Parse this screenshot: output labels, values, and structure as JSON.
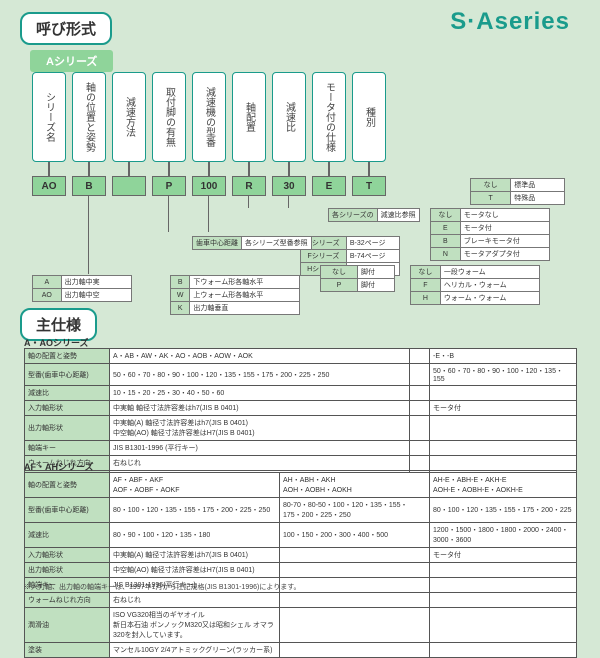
{
  "brand": "S·Aseries",
  "title_nomen": "呼び形式",
  "title_spec": "主仕様",
  "series_label": "Aシリーズ",
  "headers": [
    "シリーズ名",
    "軸の位置と姿勢",
    "減速方法",
    "取付脚の有無",
    "減速機の型番",
    "軸配置",
    "減速比",
    "モータ付の仕様",
    "種別"
  ],
  "values": [
    "AO",
    "B",
    "",
    "P",
    "100",
    "R",
    "30",
    "E",
    "T"
  ],
  "t_type": {
    "rows": [
      [
        "なし",
        "標準品"
      ],
      [
        "T",
        "特殊品"
      ]
    ]
  },
  "t_motor": {
    "rows": [
      [
        "なし",
        "モータなし"
      ],
      [
        "E",
        "モータ付"
      ],
      [
        "B",
        "ブレーキモータ付"
      ],
      [
        "N",
        "モータアダプタ付"
      ]
    ]
  },
  "t_mount": {
    "rows": [
      [
        "なし",
        "脚付"
      ],
      [
        "P",
        "脚付"
      ]
    ]
  },
  "t_worm": {
    "rows": [
      [
        "なし",
        "一段ウォーム"
      ],
      [
        "F",
        "ヘリカル・ウォーム"
      ],
      [
        "H",
        "ウォーム・ウォーム"
      ]
    ]
  },
  "t_pages": {
    "rows": [
      [
        "Bシリーズ",
        "B-32ページ"
      ],
      [
        "Fシリーズ",
        "B-74ページ"
      ],
      [
        "Hシリーズ",
        "B-110ページ"
      ]
    ]
  },
  "t_ratio": {
    "rows": [
      [
        "各シリーズの",
        "減速比参照"
      ]
    ]
  },
  "t_frame": {
    "rows": [
      [
        "歯車中心距離",
        "各シリーズ型番参照"
      ]
    ]
  },
  "t_bw": {
    "rows": [
      [
        "B",
        "下ウォーム形各軸水平"
      ],
      [
        "W",
        "上ウォーム形各軸水平"
      ],
      [
        "K",
        "出力軸垂直"
      ]
    ]
  },
  "t_out": {
    "rows": [
      [
        "A",
        "出力軸中実"
      ],
      [
        "AO",
        "出力軸中空"
      ]
    ]
  },
  "sub_a": "A・AOシリーズ",
  "sub_af": "AF・AHシリーズ",
  "spec_a": {
    "rows": [
      [
        "軸の配置と姿勢",
        "A・AB・AW・AK・AO・AOB・AOW・AOK",
        "",
        "-E・-B"
      ],
      [
        "型番(歯車中心距離)",
        "50・60・70・80・90・100・120・135・155・175・200・225・250",
        "",
        "50・60・70・80・90・100・120・135・155"
      ],
      [
        "減速比",
        "10・15・20・25・30・40・50・60",
        "",
        ""
      ],
      [
        "入力軸形状",
        "中実軸  軸径寸法許容差はh7(JIS B 0401)",
        "",
        "モータ付"
      ],
      [
        "出力軸形状",
        "中実軸(A)  軸径寸法許容差はh7(JIS B 0401)<br>中空軸(AO)  軸径寸法許容差はH7(JIS B 0401)",
        "",
        ""
      ],
      [
        "軸端キー",
        "JIS B1301-1996 (平行キー)",
        "",
        ""
      ],
      [
        "ウォームねじれ方向",
        "右ねじれ",
        "",
        ""
      ],
      [
        "潤滑油",
        "ISO VG320相当のギヤオイル<br>新日本石油 ボンノックM320又は昭和シェル オマラ320を封入しています。",
        "",
        ""
      ],
      [
        "塗装",
        "マンセル10GY 2/4アトミックグリーン(ラッカー系)",
        "",
        ""
      ]
    ]
  },
  "spec_af": {
    "rows": [
      [
        "軸の配置と姿勢",
        "AF・ABF・AKF<br>AOF・AOBF・AOKF",
        "AH・ABH・AKH<br>AOH・AOBH・AOKH",
        "AH-E・ABH-E・AKH-E<br>AOH-E・AOBH-E・AOKH-E"
      ],
      [
        "型番(歯車中心距離)",
        "80・100・120・135・155・175・200・225・250",
        "80-70・80-50・100・120・135・155・175・200・225・250",
        "80・100・120・135・155・175・200・225"
      ],
      [
        "減速比",
        "80・90・100・120・135・180",
        "100・150・200・300・400・500",
        "1200・1500・1800・1800・2000・2400・3000・3600"
      ],
      [
        "入力軸形状",
        "中実軸(A)  軸径寸法許容差はh7(JIS B 0401)",
        "",
        "モータ付"
      ],
      [
        "出力軸形状",
        "中空軸(AO)  軸径寸法許容差はH7(JIS B 0401)",
        "",
        ""
      ],
      [
        "軸端キー",
        "JIS B1301-1996(平行キー)",
        "",
        ""
      ],
      [
        "ウォームねじれ方向",
        "右ねじれ",
        "",
        ""
      ],
      [
        "潤滑油",
        "ISO VG320相当のギヤオイル<br>新日本石油 ボンノックM320又は昭和シェル オマラ320を封入しています。",
        "",
        ""
      ],
      [
        "塗装",
        "マンセル10GY 2/4アトミックグリーン(ラッカー系)",
        "",
        ""
      ]
    ]
  },
  "footnote": "※入力軸、出力軸の軸端キーは、1997年1月から注記規格(JIS B1301-1996)によります。"
}
